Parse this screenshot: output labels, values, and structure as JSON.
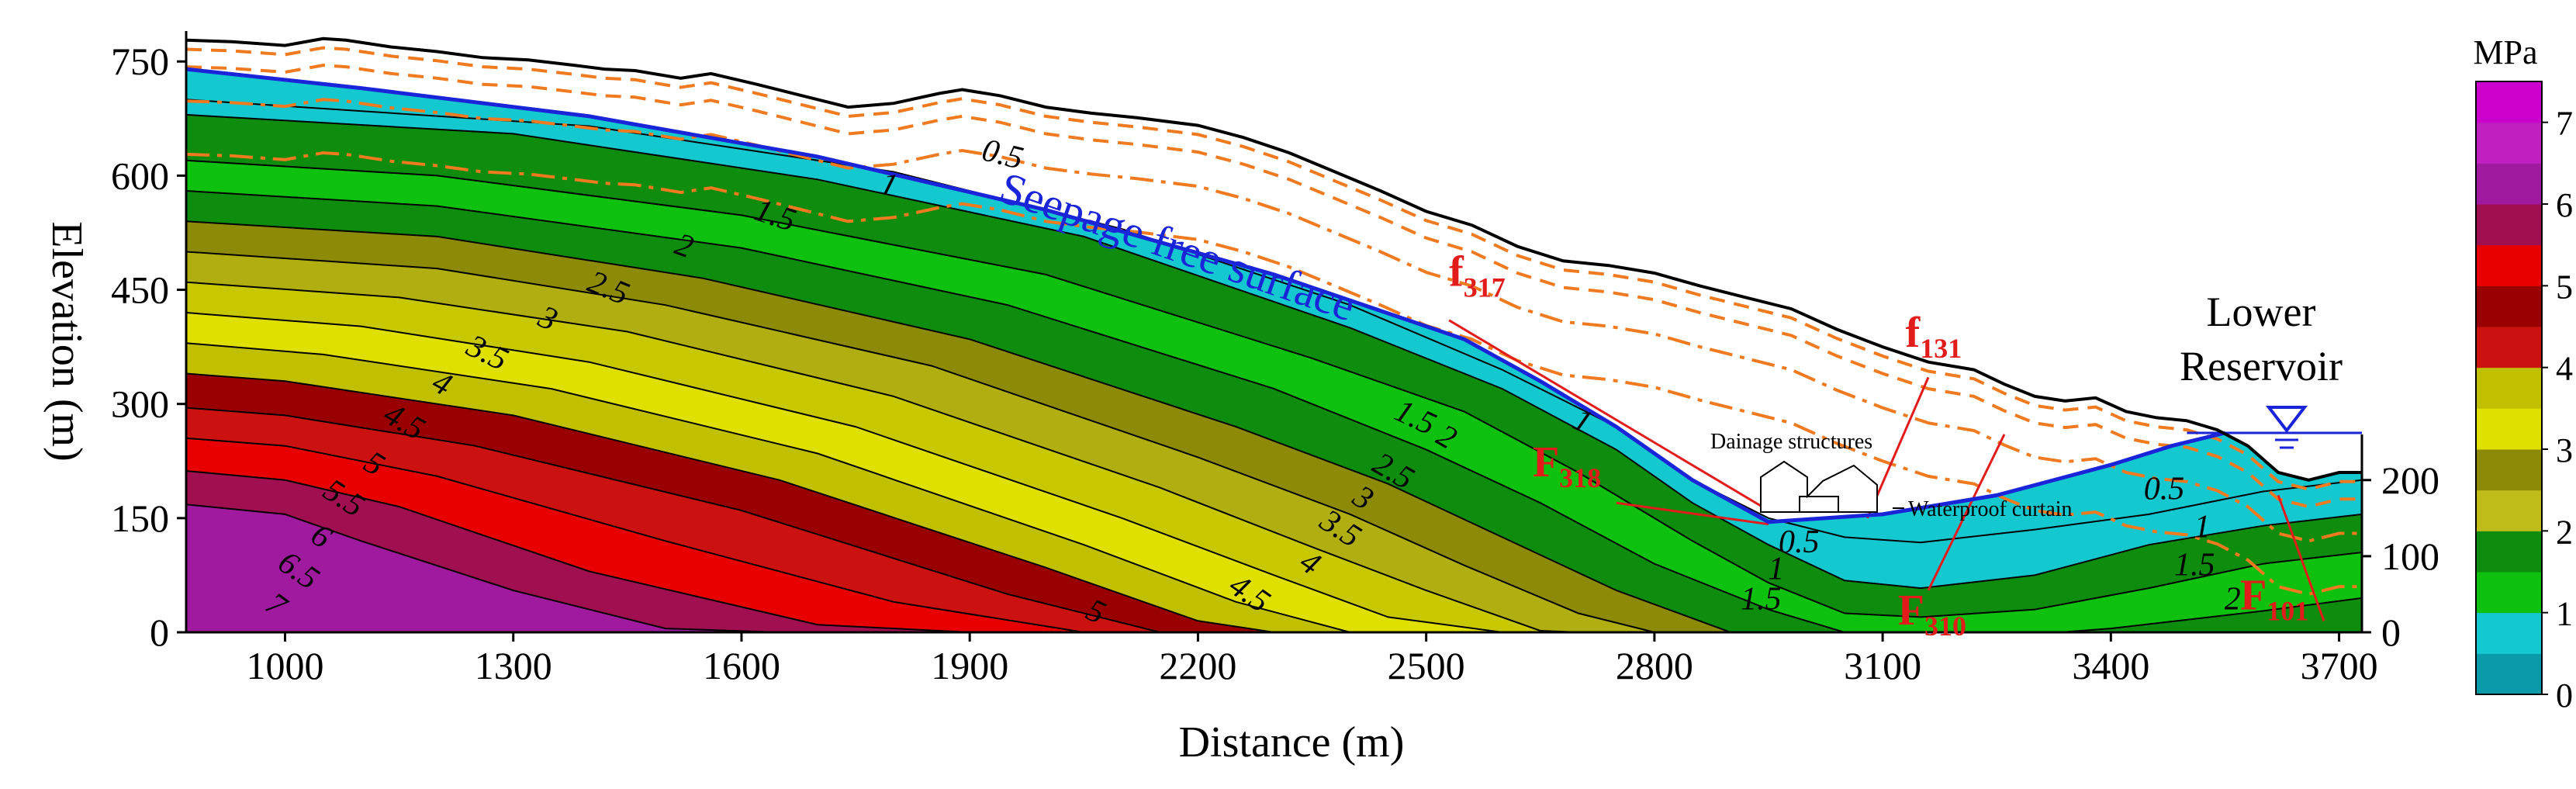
{
  "chart_data": {
    "type": "contour",
    "title": "",
    "xlabel": "Distance (m)",
    "ylabel": "Elevation (m)",
    "xlim": [
      870,
      3730
    ],
    "ylim": [
      0,
      790
    ],
    "x_ticks": [
      "1000",
      "1300",
      "1600",
      "1900",
      "2200",
      "2500",
      "2800",
      "3100",
      "3400",
      "3700"
    ],
    "y_ticks": [
      "0",
      "150",
      "300",
      "450",
      "600",
      "750"
    ],
    "right_ticks": [
      "0",
      "100",
      "200"
    ],
    "colorbar": {
      "title": "MPa",
      "ticks": [
        "0",
        "1",
        "2",
        "3",
        "4",
        "5",
        "6",
        "7"
      ],
      "colors": [
        "#0a9aa8",
        "#14c8cf",
        "#0fc10f",
        "#0d8c0d",
        "#bfbc1a",
        "#8c8a06",
        "#e0e000",
        "#c0c000",
        "#cc1111",
        "#990000",
        "#e80000",
        "#a01050",
        "#a01aa0",
        "#c020c0",
        "#cc00cc"
      ]
    },
    "surface_profile": {
      "x": [
        870,
        930,
        1000,
        1050,
        1080,
        1140,
        1200,
        1260,
        1320,
        1380,
        1420,
        1460,
        1520,
        1560,
        1620,
        1680,
        1740,
        1800,
        1860,
        1890,
        1940,
        2000,
        2060,
        2120,
        2200,
        2260,
        2320,
        2380,
        2440,
        2500,
        2560,
        2620,
        2680,
        2740,
        2800,
        2860,
        2920,
        2980,
        3040,
        3100,
        3160,
        3220,
        3260,
        3300,
        3340,
        3380,
        3420,
        3460,
        3500,
        3540,
        3580,
        3620,
        3660,
        3700,
        3730
      ],
      "y": [
        778,
        776,
        771,
        780,
        778,
        769,
        763,
        755,
        752,
        745,
        740,
        738,
        728,
        734,
        720,
        705,
        690,
        695,
        708,
        713,
        705,
        690,
        682,
        676,
        666,
        650,
        630,
        605,
        580,
        553,
        535,
        507,
        488,
        482,
        472,
        455,
        440,
        425,
        398,
        375,
        355,
        345,
        326,
        310,
        304,
        308,
        290,
        282,
        278,
        266,
        245,
        210,
        200,
        210,
        210
      ]
    },
    "seepage_free_surface": {
      "x": [
        870,
        1100,
        1400,
        1700,
        2000,
        2300,
        2550,
        2650,
        2750,
        2850,
        2950,
        3100,
        3250,
        3400,
        3480,
        3550
      ],
      "y": [
        740,
        715,
        678,
        625,
        555,
        470,
        385,
        330,
        270,
        200,
        145,
        155,
        180,
        220,
        245,
        262
      ]
    },
    "reservoir_level": 262,
    "contour_lines": [
      {
        "value": 0.5,
        "x": [
          870,
          1400,
          1800,
          2100,
          2400,
          2600,
          2750,
          2850,
          2950,
          3050,
          3150,
          3300,
          3450,
          3600,
          3730
        ],
        "y": [
          700,
          665,
          605,
          530,
          430,
          345,
          270,
          200,
          150,
          125,
          118,
          135,
          155,
          185,
          200
        ]
      },
      {
        "value": 1.0,
        "x": [
          870,
          1300,
          1700,
          2050,
          2400,
          2600,
          2750,
          2850,
          2950,
          3050,
          3150,
          3300,
          3450,
          3600,
          3730
        ],
        "y": [
          680,
          655,
          595,
          520,
          400,
          320,
          240,
          170,
          115,
          68,
          58,
          75,
          115,
          140,
          155
        ]
      },
      {
        "value": 1.5,
        "x": [
          870,
          1200,
          1600,
          2000,
          2350,
          2550,
          2700,
          2850,
          2950,
          3050,
          3150,
          3300,
          3450,
          3600,
          3730
        ],
        "y": [
          620,
          600,
          548,
          470,
          360,
          290,
          210,
          120,
          65,
          25,
          20,
          30,
          58,
          90,
          105
        ]
      },
      {
        "value": 2.0,
        "x": [
          870,
          1200,
          1600,
          1950,
          2300,
          2500,
          2650,
          2800,
          2950,
          3050,
          3200,
          3400,
          3600,
          3730
        ],
        "y": [
          580,
          560,
          505,
          430,
          320,
          240,
          170,
          90,
          30,
          0,
          -10,
          5,
          28,
          45
        ]
      },
      {
        "value": 2.5,
        "x": [
          870,
          1200,
          1550,
          1900,
          2250,
          2450,
          2600,
          2750,
          2900
        ],
        "y": [
          540,
          520,
          465,
          385,
          270,
          195,
          125,
          55,
          0
        ]
      },
      {
        "value": 3.0,
        "x": [
          870,
          1200,
          1500,
          1850,
          2200,
          2400,
          2550,
          2700,
          2800
        ],
        "y": [
          500,
          478,
          430,
          350,
          230,
          155,
          88,
          25,
          0
        ]
      },
      {
        "value": 3.5,
        "x": [
          870,
          1150,
          1450,
          1800,
          2150,
          2350,
          2500,
          2650,
          2700
        ],
        "y": [
          460,
          440,
          395,
          310,
          190,
          112,
          55,
          2,
          0
        ]
      },
      {
        "value": 4.0,
        "x": [
          870,
          1100,
          1400,
          1750,
          2100,
          2300,
          2450,
          2600
        ],
        "y": [
          420,
          402,
          355,
          270,
          150,
          75,
          20,
          0
        ]
      },
      {
        "value": 4.5,
        "x": [
          870,
          1050,
          1350,
          1700,
          2050,
          2250,
          2400,
          2480
        ],
        "y": [
          380,
          365,
          320,
          235,
          115,
          40,
          0,
          0
        ]
      },
      {
        "value": 5.0,
        "x": [
          870,
          1000,
          1300,
          1650,
          2000,
          2200,
          2300
        ],
        "y": [
          340,
          330,
          285,
          200,
          85,
          15,
          0
        ]
      },
      {
        "value": 5.5,
        "x": [
          870,
          1000,
          1250,
          1600,
          1950,
          2150,
          2200
        ],
        "y": [
          295,
          285,
          245,
          160,
          50,
          0,
          0
        ]
      },
      {
        "value": 6.0,
        "x": [
          870,
          1000,
          1200,
          1500,
          1800,
          2050,
          2100
        ],
        "y": [
          255,
          245,
          205,
          120,
          40,
          0,
          0
        ]
      },
      {
        "value": 6.5,
        "x": [
          870,
          1000,
          1150,
          1400,
          1700,
          1900,
          1950
        ],
        "y": [
          212,
          200,
          165,
          80,
          10,
          0,
          0
        ]
      },
      {
        "value": 7.0,
        "x": [
          870,
          1000,
          1100,
          1300,
          1500,
          1650,
          1700
        ],
        "y": [
          168,
          155,
          120,
          55,
          5,
          0,
          0
        ]
      }
    ],
    "contour_labels": [
      {
        "text": "0.5",
        "x": 1940,
        "y": 615,
        "angle": 14
      },
      {
        "text": "1",
        "x": 1790,
        "y": 575,
        "angle": 16
      },
      {
        "text": "1.5",
        "x": 1640,
        "y": 535,
        "angle": 18
      },
      {
        "text": "2",
        "x": 1520,
        "y": 495,
        "angle": 20
      },
      {
        "text": "2.5",
        "x": 1420,
        "y": 440,
        "angle": 22
      },
      {
        "text": "3",
        "x": 1340,
        "y": 400,
        "angle": 24
      },
      {
        "text": "3.5",
        "x": 1260,
        "y": 355,
        "angle": 26
      },
      {
        "text": "4",
        "x": 1200,
        "y": 315,
        "angle": 28
      },
      {
        "text": "4.5",
        "x": 1150,
        "y": 265,
        "angle": 30
      },
      {
        "text": "5",
        "x": 1110,
        "y": 210,
        "angle": 32
      },
      {
        "text": "5.5",
        "x": 1070,
        "y": 165,
        "angle": 33
      },
      {
        "text": "6",
        "x": 1040,
        "y": 115,
        "angle": 34
      },
      {
        "text": "6.5",
        "x": 1010,
        "y": 70,
        "angle": 35
      },
      {
        "text": "7",
        "x": 980,
        "y": 25,
        "angle": 36
      },
      {
        "text": "1.5",
        "x": 2480,
        "y": 270,
        "angle": 25
      },
      {
        "text": "1",
        "x": 2700,
        "y": 265,
        "angle": 25
      },
      {
        "text": "2",
        "x": 2520,
        "y": 245,
        "angle": 30
      },
      {
        "text": "2.5",
        "x": 2450,
        "y": 200,
        "angle": 30
      },
      {
        "text": "3",
        "x": 2410,
        "y": 165,
        "angle": 32
      },
      {
        "text": "3.5",
        "x": 2380,
        "y": 125,
        "angle": 33
      },
      {
        "text": "4",
        "x": 2340,
        "y": 80,
        "angle": 34
      },
      {
        "text": "4.5",
        "x": 2260,
        "y": 40,
        "angle": 35
      },
      {
        "text": "5",
        "x": 2060,
        "y": 15,
        "angle": 25
      },
      {
        "text": "0.5",
        "x": 2990,
        "y": 105,
        "angle": 0
      },
      {
        "text": "1",
        "x": 2960,
        "y": 70,
        "angle": 0
      },
      {
        "text": "1.5",
        "x": 2940,
        "y": 30,
        "angle": 0
      },
      {
        "text": "0.5",
        "x": 3470,
        "y": 175,
        "angle": 0
      },
      {
        "text": "1",
        "x": 3520,
        "y": 125,
        "angle": 0
      },
      {
        "text": "1.5",
        "x": 3510,
        "y": 75,
        "angle": 0
      },
      {
        "text": "2",
        "x": 3560,
        "y": 30,
        "angle": 0
      }
    ],
    "faults": [
      {
        "name": "f",
        "sub": "317",
        "label_x": 2530,
        "label_y": 455,
        "x": [
          2530,
          2950
        ],
        "y": [
          410,
          160
        ]
      },
      {
        "name": "f",
        "sub": "131",
        "label_x": 3130,
        "label_y": 375,
        "x": [
          3160,
          3080
        ],
        "y": [
          335,
          150
        ]
      },
      {
        "name": "F",
        "sub": "318",
        "label_x": 2640,
        "label_y": 205,
        "x": [
          2750,
          2950
        ],
        "y": [
          170,
          142
        ]
      },
      {
        "name": "F",
        "sub": "310",
        "label_x": 3120,
        "label_y": 10,
        "x": [
          3160,
          3260
        ],
        "y": [
          55,
          260
        ]
      },
      {
        "name": "F",
        "sub": "101",
        "label_x": 3570,
        "label_y": 30,
        "x": [
          3620,
          3680
        ],
        "y": [
          180,
          15
        ]
      }
    ],
    "annotations": {
      "seepage": "Seepage free surface",
      "drainage": "Dainage structures",
      "curtain": "Waterproof curtain",
      "reservoir_line1": "Lower",
      "reservoir_line2": "Reservoir"
    }
  }
}
